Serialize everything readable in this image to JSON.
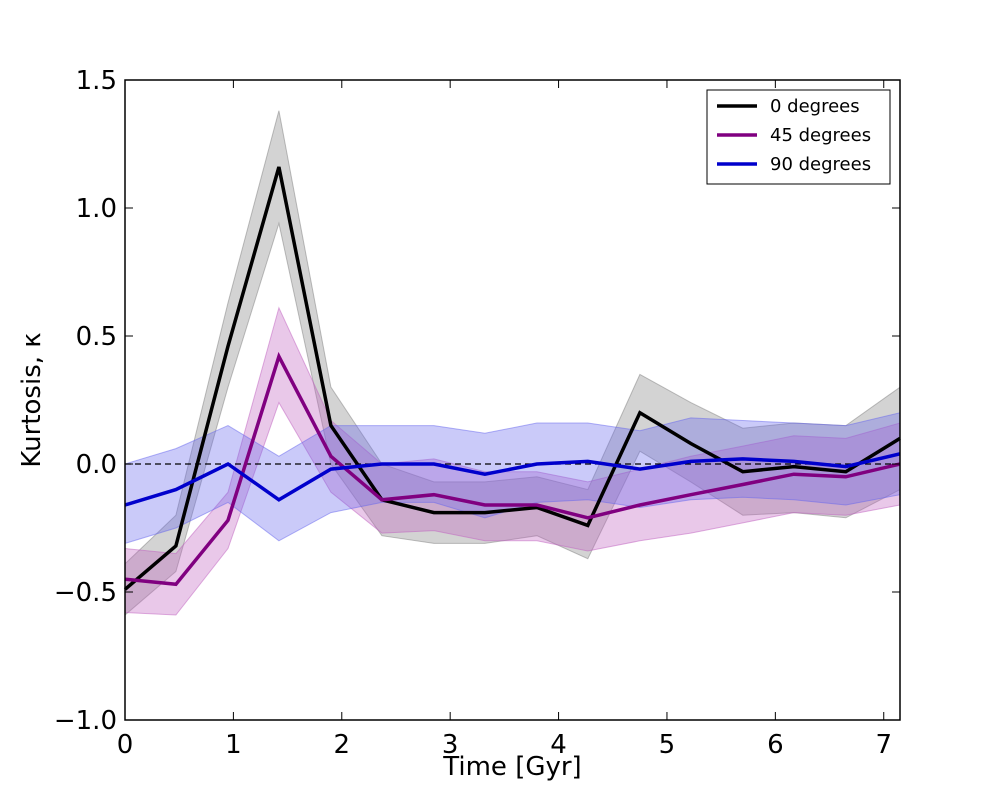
{
  "chart_data": {
    "type": "line",
    "title": "",
    "xlabel": "Time [Gyr]",
    "ylabel": "Kurtosis, κ",
    "xlim": [
      0,
      7.15
    ],
    "ylim": [
      -1.0,
      1.5
    ],
    "xticks": [
      0,
      1,
      2,
      3,
      4,
      5,
      6,
      7
    ],
    "yticks": [
      -1.0,
      -0.5,
      0.0,
      0.5,
      1.0,
      1.5
    ],
    "xtick_labels": [
      "0",
      "1",
      "2",
      "3",
      "4",
      "5",
      "6",
      "7"
    ],
    "ytick_labels": [
      "−1.0",
      "−0.5",
      "0.0",
      "0.5",
      "1.0",
      "1.5"
    ],
    "reference_line": {
      "y": 0.0,
      "style": "dashed",
      "color": "#000000"
    },
    "legend": {
      "position": "top-right"
    },
    "x": [
      0.0,
      0.47,
      0.95,
      1.42,
      1.9,
      2.37,
      2.85,
      3.32,
      3.8,
      4.27,
      4.75,
      5.22,
      5.7,
      6.17,
      6.65,
      7.15
    ],
    "series": [
      {
        "name": "0 degrees",
        "color": "#000000",
        "band_color": "#808080",
        "values": [
          -0.49,
          -0.32,
          0.46,
          1.16,
          0.15,
          -0.14,
          -0.19,
          -0.19,
          -0.17,
          -0.24,
          0.2,
          0.08,
          -0.03,
          -0.01,
          -0.03,
          0.1
        ],
        "lower": [
          -0.59,
          -0.42,
          0.3,
          0.94,
          0.0,
          -0.28,
          -0.31,
          -0.31,
          -0.28,
          -0.37,
          0.05,
          -0.07,
          -0.2,
          -0.19,
          -0.21,
          -0.1
        ],
        "upper": [
          -0.39,
          -0.2,
          0.63,
          1.38,
          0.3,
          0.0,
          -0.07,
          -0.07,
          -0.05,
          -0.1,
          0.35,
          0.24,
          0.14,
          0.16,
          0.15,
          0.3
        ]
      },
      {
        "name": "45 degrees",
        "color": "#800080",
        "band_color": "#c060c0",
        "values": [
          -0.45,
          -0.47,
          -0.22,
          0.42,
          0.03,
          -0.14,
          -0.12,
          -0.16,
          -0.16,
          -0.21,
          -0.16,
          -0.12,
          -0.08,
          -0.04,
          -0.05,
          0.0
        ],
        "lower": [
          -0.58,
          -0.59,
          -0.33,
          0.24,
          -0.11,
          -0.27,
          -0.26,
          -0.3,
          -0.3,
          -0.34,
          -0.3,
          -0.27,
          -0.23,
          -0.19,
          -0.2,
          -0.16
        ],
        "upper": [
          -0.33,
          -0.35,
          -0.11,
          0.61,
          0.17,
          0.0,
          0.02,
          -0.03,
          -0.03,
          -0.07,
          -0.02,
          0.03,
          0.07,
          0.11,
          0.1,
          0.16
        ]
      },
      {
        "name": "90 degrees",
        "color": "#0000cc",
        "band_color": "#6666ee",
        "values": [
          -0.16,
          -0.1,
          0.0,
          -0.14,
          -0.02,
          0.0,
          0.0,
          -0.04,
          0.0,
          0.01,
          -0.02,
          0.01,
          0.02,
          0.01,
          -0.01,
          0.04
        ],
        "lower": [
          -0.31,
          -0.25,
          -0.15,
          -0.3,
          -0.19,
          -0.15,
          -0.15,
          -0.21,
          -0.15,
          -0.14,
          -0.17,
          -0.14,
          -0.13,
          -0.14,
          -0.16,
          -0.12
        ],
        "upper": [
          0.0,
          0.06,
          0.15,
          0.03,
          0.15,
          0.15,
          0.15,
          0.12,
          0.16,
          0.16,
          0.13,
          0.18,
          0.17,
          0.16,
          0.15,
          0.2
        ]
      }
    ]
  }
}
